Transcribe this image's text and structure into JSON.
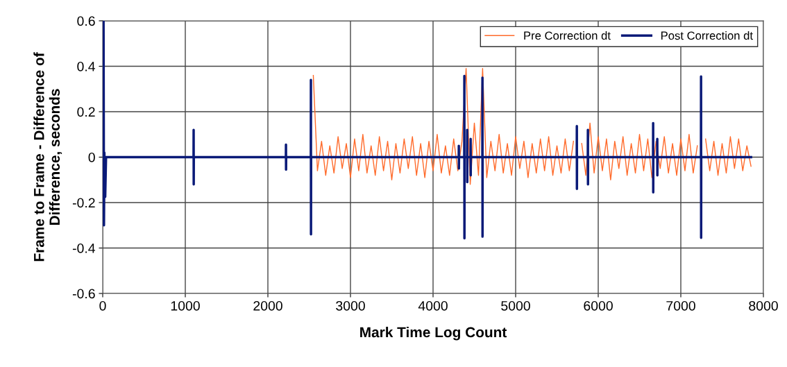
{
  "chart_data": {
    "type": "line",
    "xlabel": "Mark Time Log Count",
    "ylabel": "Frame to Frame - Difference of\nDifference, seconds",
    "xlim": [
      0,
      8000
    ],
    "xticks": [
      0,
      1000,
      2000,
      3000,
      4000,
      5000,
      6000,
      7000,
      8000
    ],
    "ylim": [
      -0.6,
      0.6
    ],
    "yticks": [
      -0.6,
      -0.4,
      -0.2,
      0,
      0.2,
      0.4,
      0.6
    ],
    "grid": true,
    "legend": "top right",
    "marker": "none",
    "line_style": "solid",
    "series": [
      {
        "name": "Pre Correction dt",
        "color": "#ff6a2a",
        "x": [
          2550,
          2600,
          2650,
          2700,
          2750,
          2800,
          2850,
          2900,
          2950,
          3000,
          3050,
          3100,
          3150,
          3200,
          3250,
          3300,
          3350,
          3400,
          3450,
          3500,
          3550,
          3600,
          3650,
          3700,
          3750,
          3800,
          3850,
          3900,
          3950,
          4000,
          4050,
          4100,
          4150,
          4200,
          4250,
          4300,
          4350,
          4400,
          4450,
          4500,
          4550,
          4600,
          4650,
          4700,
          4750,
          4800,
          4850,
          4900,
          4950,
          5000,
          5050,
          5100,
          5150,
          5200,
          5250,
          5300,
          5350,
          5400,
          5450,
          5500,
          5550,
          5600,
          5650,
          5700,
          5750,
          5800,
          5850,
          5900,
          5950,
          6000,
          6050,
          6100,
          6150,
          6200,
          6250,
          6300,
          6350,
          6400,
          6450,
          6500,
          6550,
          6600,
          6650,
          6700,
          6750,
          6800,
          6850,
          6900,
          6950,
          7000,
          7050,
          7100,
          7150,
          7200,
          7250,
          7300,
          7350,
          7400,
          7450,
          7500,
          7550,
          7600,
          7650,
          7700,
          7750,
          7800,
          7850
        ],
        "values": [
          0.36,
          -0.06,
          0.07,
          -0.08,
          0.05,
          -0.07,
          0.09,
          -0.05,
          0.06,
          -0.09,
          0.08,
          -0.06,
          0.1,
          -0.07,
          0.05,
          -0.08,
          0.09,
          -0.06,
          0.07,
          -0.1,
          0.06,
          -0.07,
          0.08,
          -0.05,
          0.09,
          -0.08,
          0.06,
          -0.09,
          0.07,
          -0.06,
          0.1,
          -0.07,
          0.05,
          -0.08,
          0.08,
          -0.06,
          0.07,
          0.39,
          -0.12,
          0.15,
          -0.08,
          0.39,
          -0.09,
          0.07,
          -0.06,
          0.1,
          -0.07,
          0.06,
          -0.08,
          0.09,
          -0.05,
          0.07,
          -0.09,
          0.06,
          -0.07,
          0.08,
          -0.06,
          0.09,
          -0.08,
          0.05,
          -0.07,
          0.08,
          -0.06,
          0.07,
          null,
          0.06,
          -0.08,
          0.15,
          -0.07,
          0.09,
          -0.06,
          0.08,
          -0.1,
          0.07,
          -0.05,
          0.09,
          -0.08,
          0.06,
          -0.07,
          0.1,
          -0.06,
          0.08,
          -0.09,
          0.07,
          -0.05,
          0.09,
          -0.07,
          0.06,
          -0.08,
          0.08,
          -0.06,
          0.1,
          -0.07,
          0.05,
          null,
          0.08,
          -0.06,
          0.07,
          -0.08,
          0.06,
          -0.07,
          0.09,
          -0.05,
          0.08,
          -0.06,
          0.05,
          -0.04
        ]
      },
      {
        "name": "Post Correction dt",
        "color": "#0a1a78",
        "x": [
          0,
          10,
          15,
          20,
          30,
          40,
          1100,
          1101,
          1102,
          1103,
          2218,
          2219,
          2220,
          2221,
          2520,
          2521,
          2522,
          2523,
          4311,
          4312,
          4313,
          4314,
          4378,
          4379,
          4380,
          4381,
          4412,
          4413,
          4414,
          4415,
          4454,
          4455,
          4456,
          4457,
          4597,
          4598,
          4599,
          4600,
          5740,
          5741,
          5742,
          5743,
          5874,
          5875,
          5876,
          5877,
          6664,
          6665,
          6666,
          6667,
          6714,
          6715,
          6716,
          6717,
          7244,
          7245,
          7246,
          7247,
          7850
        ],
        "values": [
          0,
          0.6,
          -0.3,
          0.02,
          -0.175,
          0,
          0,
          0.12,
          -0.12,
          0,
          0,
          0.055,
          -0.055,
          0,
          0,
          0.34,
          -0.34,
          0,
          0,
          0.05,
          -0.05,
          0,
          0,
          0.357,
          -0.357,
          0,
          0,
          0.12,
          -0.11,
          0,
          0,
          0.08,
          -0.08,
          0,
          0,
          0.35,
          -0.35,
          0,
          0,
          0.137,
          -0.14,
          0,
          0,
          0.12,
          -0.12,
          0,
          0,
          0.15,
          -0.155,
          0,
          0,
          0.08,
          -0.08,
          0,
          0,
          0.355,
          -0.355,
          0,
          0
        ]
      }
    ]
  }
}
